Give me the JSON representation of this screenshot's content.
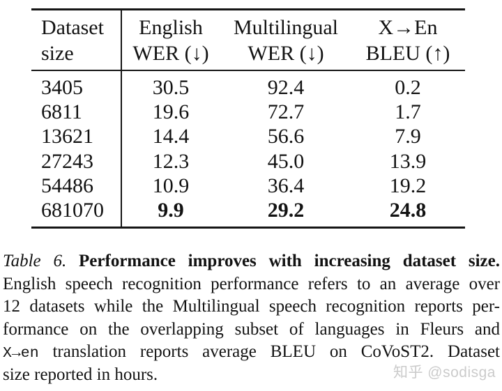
{
  "colors": {
    "background": "#ffffff",
    "text": "#121212",
    "rule": "#151515",
    "watermark": "#cbcbcb"
  },
  "table": {
    "columns": [
      {
        "id": "dataset-size",
        "header_lines": [
          "Dataset",
          "size"
        ],
        "align": "left"
      },
      {
        "id": "english-wer",
        "header_lines": [
          "English",
          "WER (↓)"
        ],
        "align": "center"
      },
      {
        "id": "multilingual-wer",
        "header_lines": [
          "Multilingual",
          "WER (↓)"
        ],
        "align": "center"
      },
      {
        "id": "x-en-bleu",
        "header_lines": [
          "X→En",
          "BLEU (↑)"
        ],
        "align": "center"
      }
    ],
    "rows": [
      {
        "cells": [
          "3405",
          "30.5",
          "92.4",
          "0.2"
        ],
        "bold_values": false
      },
      {
        "cells": [
          "6811",
          "19.6",
          "72.7",
          "1.7"
        ],
        "bold_values": false
      },
      {
        "cells": [
          "13621",
          "14.4",
          "56.6",
          "7.9"
        ],
        "bold_values": false
      },
      {
        "cells": [
          "27243",
          "12.3",
          "45.0",
          "13.9"
        ],
        "bold_values": false
      },
      {
        "cells": [
          "54486",
          "10.9",
          "36.4",
          "19.2"
        ],
        "bold_values": false
      },
      {
        "cells": [
          "681070",
          "9.9",
          "29.2",
          "24.8"
        ],
        "bold_values": true
      }
    ]
  },
  "caption": {
    "lines": [
      {
        "justify": true,
        "segments": [
          {
            "text": "Table 6.",
            "style": "italic"
          },
          {
            "text": " ",
            "style": "normal"
          },
          {
            "text": "Performance improves with increasing dataset size.",
            "style": "bold"
          }
        ]
      },
      {
        "justify": true,
        "segments": [
          {
            "text": "English speech recognition performance refers to an average over",
            "style": "normal"
          }
        ]
      },
      {
        "justify": true,
        "segments": [
          {
            "text": "12 datasets while the Multilingual speech recognition reports per-",
            "style": "normal"
          }
        ]
      },
      {
        "justify": true,
        "segments": [
          {
            "text": "formance on the overlapping subset of languages in Fleurs and",
            "style": "normal"
          }
        ]
      },
      {
        "justify": true,
        "segments": [
          {
            "text": "X→en",
            "style": "mono"
          },
          {
            "text": " translation reports average BLEU on CoVoST2. Dataset",
            "style": "normal"
          }
        ]
      },
      {
        "justify": false,
        "segments": [
          {
            "text": "size reported in hours.",
            "style": "normal"
          }
        ]
      }
    ]
  },
  "watermark": {
    "text": "知乎 @sodisga"
  }
}
